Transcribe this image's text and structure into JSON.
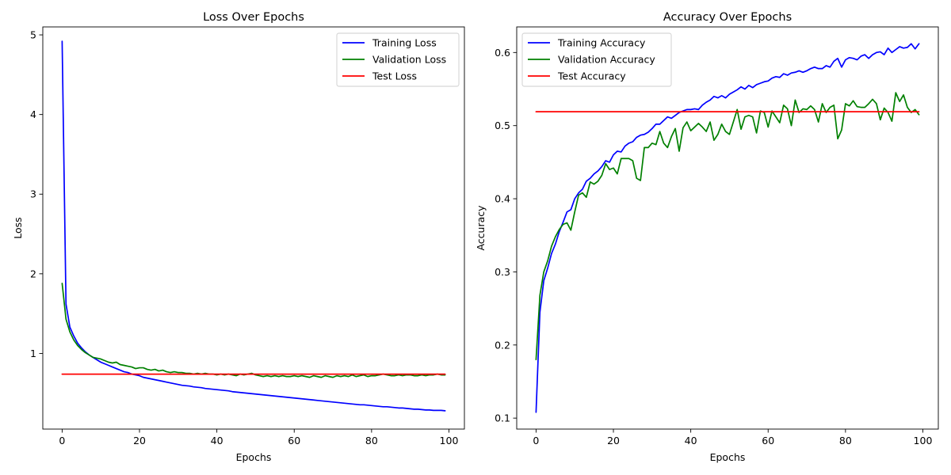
{
  "chart_data": [
    {
      "type": "line",
      "title": "Loss Over Epochs",
      "xlabel": "Epochs",
      "ylabel": "Loss",
      "xlim": [
        -5,
        104
      ],
      "ylim": [
        0.05,
        5.1
      ],
      "xticks": [
        0,
        20,
        40,
        60,
        80,
        100
      ],
      "yticks": [
        1,
        2,
        3,
        4,
        5
      ],
      "grid": false,
      "legend_position": "top-right",
      "x": [
        0,
        1,
        2,
        3,
        4,
        5,
        6,
        7,
        8,
        9,
        10,
        11,
        12,
        13,
        14,
        15,
        16,
        17,
        18,
        19,
        20,
        21,
        22,
        23,
        24,
        25,
        26,
        27,
        28,
        29,
        30,
        31,
        32,
        33,
        34,
        35,
        36,
        37,
        38,
        39,
        40,
        41,
        42,
        43,
        44,
        45,
        46,
        47,
        48,
        49,
        50,
        51,
        52,
        53,
        54,
        55,
        56,
        57,
        58,
        59,
        60,
        61,
        62,
        63,
        64,
        65,
        66,
        67,
        68,
        69,
        70,
        71,
        72,
        73,
        74,
        75,
        76,
        77,
        78,
        79,
        80,
        81,
        82,
        83,
        84,
        85,
        86,
        87,
        88,
        89,
        90,
        91,
        92,
        93,
        94,
        95,
        96,
        97,
        98,
        99
      ],
      "series": [
        {
          "name": "Training Loss",
          "color": "#0000ff",
          "values": [
            4.92,
            1.62,
            1.33,
            1.22,
            1.13,
            1.07,
            1.02,
            0.98,
            0.95,
            0.92,
            0.89,
            0.87,
            0.85,
            0.83,
            0.81,
            0.79,
            0.77,
            0.76,
            0.74,
            0.73,
            0.72,
            0.7,
            0.69,
            0.68,
            0.67,
            0.66,
            0.65,
            0.64,
            0.63,
            0.62,
            0.61,
            0.6,
            0.595,
            0.59,
            0.58,
            0.575,
            0.57,
            0.56,
            0.555,
            0.55,
            0.545,
            0.54,
            0.535,
            0.53,
            0.52,
            0.515,
            0.51,
            0.505,
            0.5,
            0.495,
            0.49,
            0.485,
            0.48,
            0.475,
            0.47,
            0.465,
            0.46,
            0.455,
            0.45,
            0.445,
            0.44,
            0.435,
            0.43,
            0.425,
            0.42,
            0.415,
            0.41,
            0.405,
            0.4,
            0.395,
            0.39,
            0.385,
            0.38,
            0.375,
            0.37,
            0.365,
            0.36,
            0.355,
            0.355,
            0.35,
            0.345,
            0.34,
            0.335,
            0.33,
            0.33,
            0.325,
            0.32,
            0.315,
            0.315,
            0.31,
            0.305,
            0.3,
            0.3,
            0.295,
            0.29,
            0.29,
            0.285,
            0.285,
            0.285,
            0.28
          ]
        },
        {
          "name": "Validation Loss",
          "color": "#008000",
          "values": [
            1.88,
            1.43,
            1.27,
            1.17,
            1.1,
            1.05,
            1.01,
            0.98,
            0.95,
            0.94,
            0.93,
            0.91,
            0.89,
            0.88,
            0.89,
            0.86,
            0.85,
            0.84,
            0.83,
            0.81,
            0.82,
            0.82,
            0.8,
            0.79,
            0.8,
            0.78,
            0.79,
            0.77,
            0.76,
            0.77,
            0.76,
            0.76,
            0.75,
            0.75,
            0.74,
            0.75,
            0.74,
            0.75,
            0.74,
            0.74,
            0.73,
            0.74,
            0.73,
            0.74,
            0.73,
            0.72,
            0.74,
            0.73,
            0.74,
            0.75,
            0.73,
            0.72,
            0.71,
            0.72,
            0.71,
            0.72,
            0.71,
            0.72,
            0.71,
            0.71,
            0.72,
            0.71,
            0.72,
            0.71,
            0.7,
            0.72,
            0.71,
            0.7,
            0.72,
            0.71,
            0.7,
            0.72,
            0.71,
            0.72,
            0.71,
            0.73,
            0.71,
            0.72,
            0.73,
            0.71,
            0.72,
            0.72,
            0.73,
            0.74,
            0.73,
            0.72,
            0.72,
            0.73,
            0.72,
            0.73,
            0.73,
            0.72,
            0.72,
            0.73,
            0.72,
            0.73,
            0.73,
            0.74,
            0.73,
            0.73
          ]
        },
        {
          "name": "Test Loss",
          "color": "#ff0000",
          "values": [
            0.74,
            0.74,
            0.74,
            0.74,
            0.74,
            0.74,
            0.74,
            0.74,
            0.74,
            0.74,
            0.74,
            0.74,
            0.74,
            0.74,
            0.74,
            0.74,
            0.74,
            0.74,
            0.74,
            0.74,
            0.74,
            0.74,
            0.74,
            0.74,
            0.74,
            0.74,
            0.74,
            0.74,
            0.74,
            0.74,
            0.74,
            0.74,
            0.74,
            0.74,
            0.74,
            0.74,
            0.74,
            0.74,
            0.74,
            0.74,
            0.74,
            0.74,
            0.74,
            0.74,
            0.74,
            0.74,
            0.74,
            0.74,
            0.74,
            0.74,
            0.74,
            0.74,
            0.74,
            0.74,
            0.74,
            0.74,
            0.74,
            0.74,
            0.74,
            0.74,
            0.74,
            0.74,
            0.74,
            0.74,
            0.74,
            0.74,
            0.74,
            0.74,
            0.74,
            0.74,
            0.74,
            0.74,
            0.74,
            0.74,
            0.74,
            0.74,
            0.74,
            0.74,
            0.74,
            0.74,
            0.74,
            0.74,
            0.74,
            0.74,
            0.74,
            0.74,
            0.74,
            0.74,
            0.74,
            0.74,
            0.74,
            0.74,
            0.74,
            0.74,
            0.74,
            0.74,
            0.74,
            0.74,
            0.74,
            0.74
          ]
        }
      ]
    },
    {
      "type": "line",
      "title": "Accuracy Over Epochs",
      "xlabel": "Epochs",
      "ylabel": "Accuracy",
      "xlim": [
        -5,
        104
      ],
      "ylim": [
        0.085,
        0.635
      ],
      "xticks": [
        0,
        20,
        40,
        60,
        80,
        100
      ],
      "yticks": [
        0.1,
        0.2,
        0.3,
        0.4,
        0.5,
        0.6
      ],
      "grid": false,
      "legend_position": "top-left",
      "x": [
        0,
        1,
        2,
        3,
        4,
        5,
        6,
        7,
        8,
        9,
        10,
        11,
        12,
        13,
        14,
        15,
        16,
        17,
        18,
        19,
        20,
        21,
        22,
        23,
        24,
        25,
        26,
        27,
        28,
        29,
        30,
        31,
        32,
        33,
        34,
        35,
        36,
        37,
        38,
        39,
        40,
        41,
        42,
        43,
        44,
        45,
        46,
        47,
        48,
        49,
        50,
        51,
        52,
        53,
        54,
        55,
        56,
        57,
        58,
        59,
        60,
        61,
        62,
        63,
        64,
        65,
        66,
        67,
        68,
        69,
        70,
        71,
        72,
        73,
        74,
        75,
        76,
        77,
        78,
        79,
        80,
        81,
        82,
        83,
        84,
        85,
        86,
        87,
        88,
        89,
        90,
        91,
        92,
        93,
        94,
        95,
        96,
        97,
        98,
        99
      ],
      "series": [
        {
          "name": "Training Accuracy",
          "color": "#0000ff",
          "values": [
            0.108,
            0.245,
            0.288,
            0.305,
            0.325,
            0.338,
            0.355,
            0.368,
            0.382,
            0.385,
            0.4,
            0.408,
            0.413,
            0.424,
            0.428,
            0.434,
            0.438,
            0.444,
            0.452,
            0.45,
            0.46,
            0.465,
            0.464,
            0.472,
            0.476,
            0.478,
            0.484,
            0.487,
            0.488,
            0.491,
            0.496,
            0.502,
            0.502,
            0.507,
            0.512,
            0.51,
            0.514,
            0.518,
            0.52,
            0.522,
            0.522,
            0.523,
            0.522,
            0.528,
            0.532,
            0.535,
            0.54,
            0.538,
            0.541,
            0.538,
            0.543,
            0.546,
            0.549,
            0.553,
            0.55,
            0.555,
            0.552,
            0.556,
            0.558,
            0.56,
            0.561,
            0.565,
            0.567,
            0.566,
            0.571,
            0.569,
            0.572,
            0.573,
            0.575,
            0.573,
            0.575,
            0.578,
            0.58,
            0.578,
            0.578,
            0.582,
            0.58,
            0.588,
            0.592,
            0.58,
            0.59,
            0.593,
            0.592,
            0.59,
            0.595,
            0.597,
            0.592,
            0.597,
            0.6,
            0.601,
            0.597,
            0.606,
            0.6,
            0.604,
            0.608,
            0.606,
            0.607,
            0.612,
            0.605,
            0.612
          ]
        },
        {
          "name": "Validation Accuracy",
          "color": "#008000",
          "values": [
            0.18,
            0.268,
            0.3,
            0.315,
            0.335,
            0.348,
            0.358,
            0.365,
            0.367,
            0.357,
            0.382,
            0.405,
            0.408,
            0.402,
            0.423,
            0.42,
            0.424,
            0.432,
            0.448,
            0.44,
            0.442,
            0.434,
            0.455,
            0.455,
            0.455,
            0.452,
            0.428,
            0.425,
            0.47,
            0.47,
            0.476,
            0.474,
            0.492,
            0.476,
            0.47,
            0.485,
            0.496,
            0.465,
            0.497,
            0.505,
            0.493,
            0.498,
            0.503,
            0.498,
            0.492,
            0.505,
            0.48,
            0.488,
            0.502,
            0.492,
            0.488,
            0.505,
            0.522,
            0.495,
            0.512,
            0.514,
            0.512,
            0.49,
            0.52,
            0.518,
            0.498,
            0.52,
            0.512,
            0.504,
            0.528,
            0.523,
            0.5,
            0.535,
            0.518,
            0.523,
            0.522,
            0.527,
            0.522,
            0.505,
            0.53,
            0.518,
            0.525,
            0.528,
            0.482,
            0.494,
            0.53,
            0.527,
            0.534,
            0.526,
            0.525,
            0.525,
            0.53,
            0.536,
            0.53,
            0.508,
            0.524,
            0.518,
            0.506,
            0.545,
            0.533,
            0.542,
            0.525,
            0.518,
            0.522,
            0.515
          ]
        },
        {
          "name": "Test Accuracy",
          "color": "#ff0000",
          "values": [
            0.519,
            0.519,
            0.519,
            0.519,
            0.519,
            0.519,
            0.519,
            0.519,
            0.519,
            0.519,
            0.519,
            0.519,
            0.519,
            0.519,
            0.519,
            0.519,
            0.519,
            0.519,
            0.519,
            0.519,
            0.519,
            0.519,
            0.519,
            0.519,
            0.519,
            0.519,
            0.519,
            0.519,
            0.519,
            0.519,
            0.519,
            0.519,
            0.519,
            0.519,
            0.519,
            0.519,
            0.519,
            0.519,
            0.519,
            0.519,
            0.519,
            0.519,
            0.519,
            0.519,
            0.519,
            0.519,
            0.519,
            0.519,
            0.519,
            0.519,
            0.519,
            0.519,
            0.519,
            0.519,
            0.519,
            0.519,
            0.519,
            0.519,
            0.519,
            0.519,
            0.519,
            0.519,
            0.519,
            0.519,
            0.519,
            0.519,
            0.519,
            0.519,
            0.519,
            0.519,
            0.519,
            0.519,
            0.519,
            0.519,
            0.519,
            0.519,
            0.519,
            0.519,
            0.519,
            0.519,
            0.519,
            0.519,
            0.519,
            0.519,
            0.519,
            0.519,
            0.519,
            0.519,
            0.519,
            0.519,
            0.519,
            0.519,
            0.519,
            0.519,
            0.519,
            0.519,
            0.519,
            0.519,
            0.519,
            0.519
          ]
        }
      ]
    }
  ]
}
